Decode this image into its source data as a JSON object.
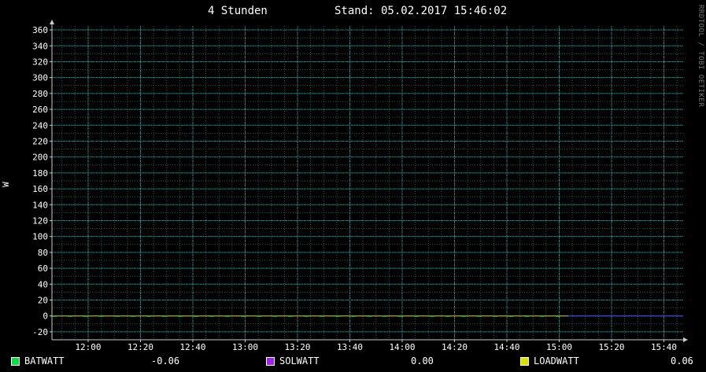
{
  "header": {
    "period": "4 Stunden",
    "stand": "Stand: 05.02.2017 15:46:02",
    "watermark": "RRDTOOL / TOBI OETIKER"
  },
  "chart_data": {
    "type": "line",
    "ylabel": "W",
    "ylim": [
      -30,
      365
    ],
    "yticks": [
      -20,
      0,
      20,
      40,
      60,
      80,
      100,
      120,
      140,
      160,
      180,
      200,
      220,
      240,
      260,
      280,
      300,
      320,
      340,
      360
    ],
    "xticks": [
      "12:00",
      "12:20",
      "12:40",
      "13:00",
      "13:20",
      "13:40",
      "14:00",
      "14:20",
      "14:40",
      "15:00",
      "15:20",
      "15:40"
    ],
    "grid": true,
    "series": [
      {
        "name": "BATWATT",
        "color": "#00e040",
        "last": "-0.06"
      },
      {
        "name": "SOLWATT",
        "color": "#a020f0",
        "last": "0.00"
      },
      {
        "name": "LOADWATT",
        "color": "#d8e000",
        "last": "0.06"
      }
    ]
  }
}
